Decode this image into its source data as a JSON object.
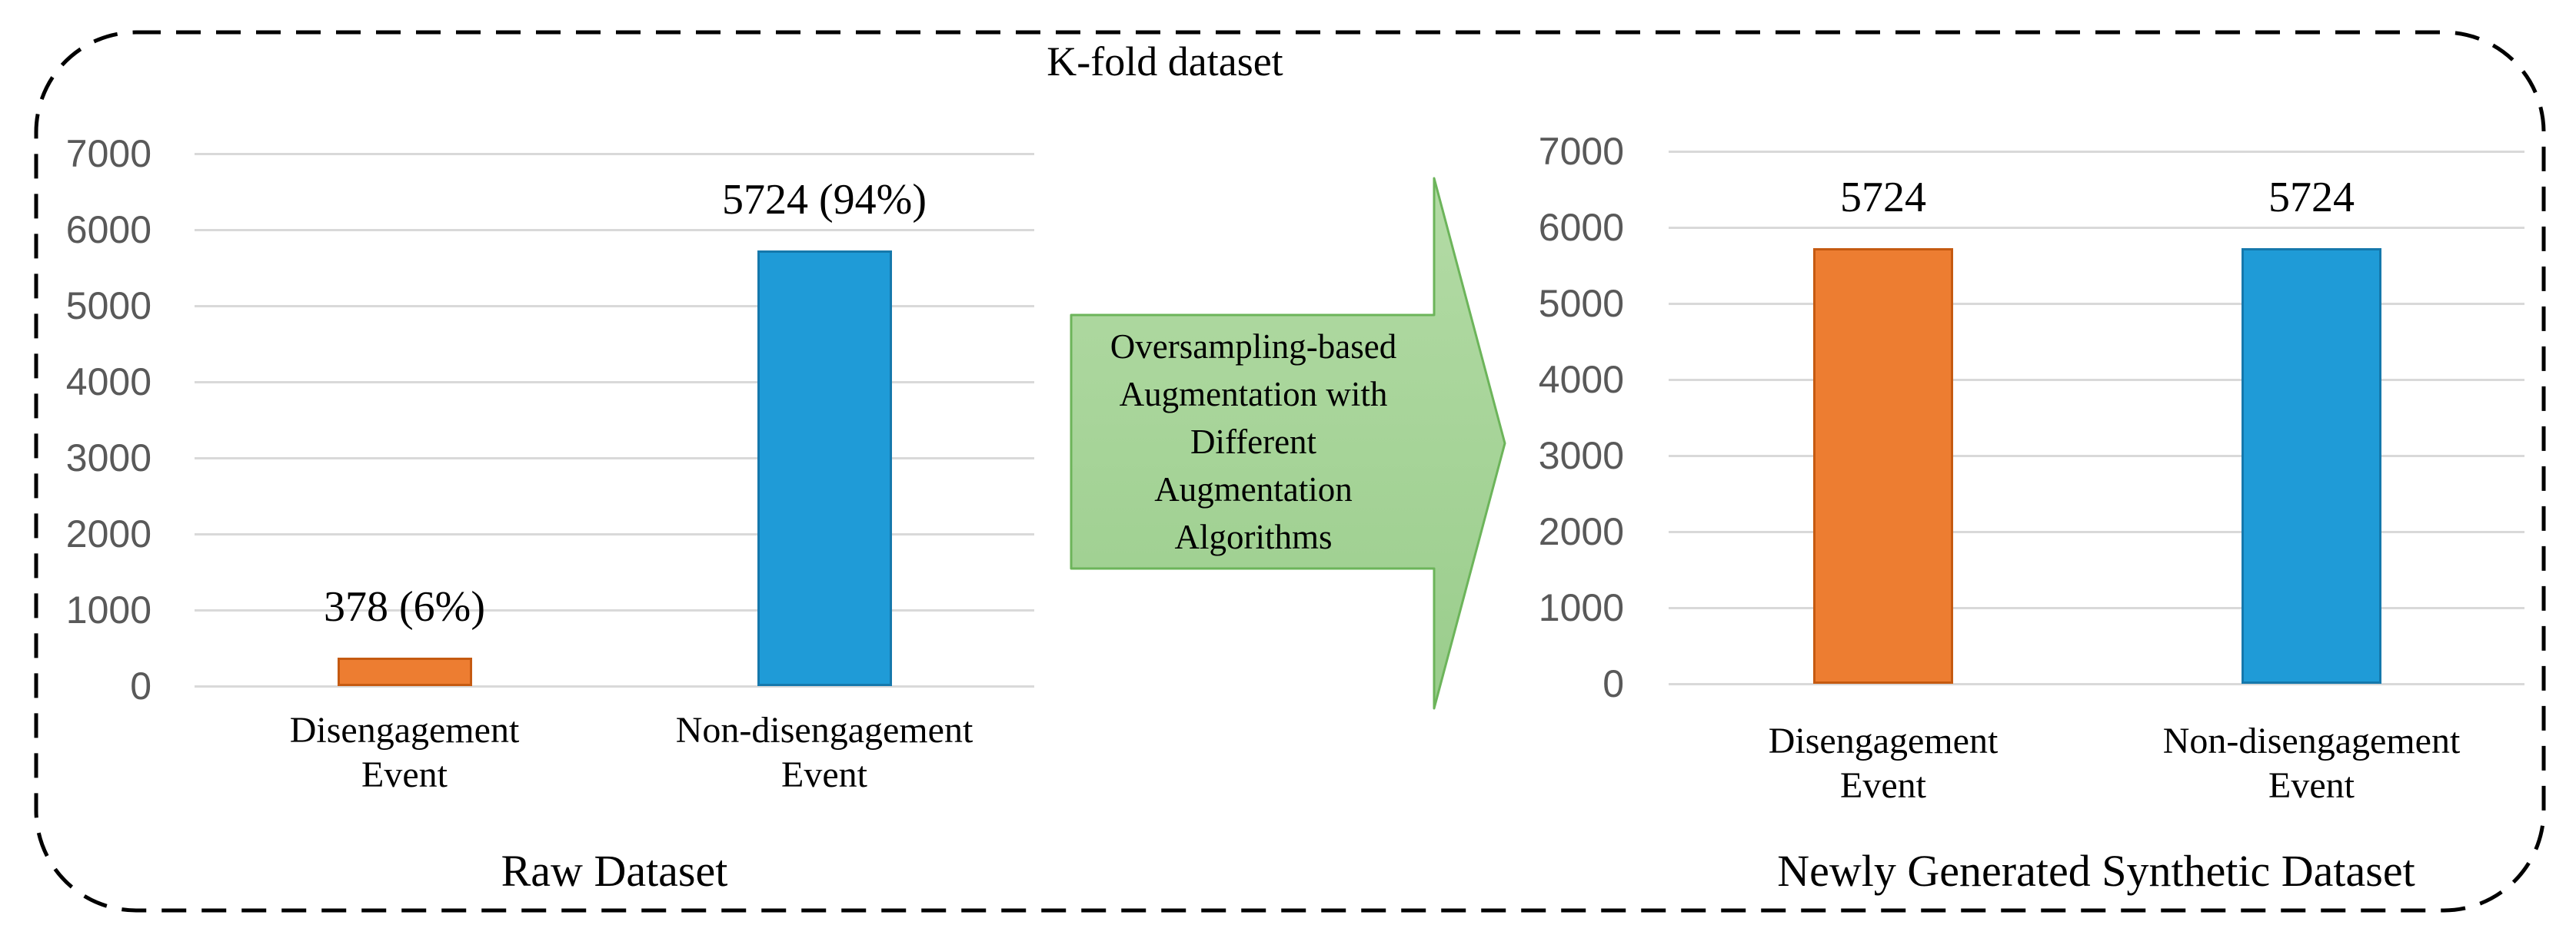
{
  "figure": {
    "title": "K-fold dataset",
    "arrow": {
      "label_lines": [
        "Oversampling-based",
        "Augmentation with",
        "Different",
        "Augmentation",
        "Algorithms"
      ]
    }
  },
  "palette": {
    "orange_fill": "#ED7D31",
    "orange_border": "#C55A11",
    "blue_fill": "#1F9BD7",
    "blue_border": "#1578AC",
    "green_fill_top": "#B3DBA5",
    "green_fill_bottom": "#9ACD8C",
    "green_border": "#6CB45A",
    "gridline": "#D9D9D9",
    "tick_text": "#595959",
    "outer_border": "#000000"
  },
  "chart_data": [
    {
      "type": "bar",
      "title": "Raw Dataset",
      "categories": [
        [
          "Disengagement",
          "Event"
        ],
        [
          "Non-disengagement",
          "Event"
        ]
      ],
      "values": [
        378,
        5724
      ],
      "value_labels": [
        "378 (6%)",
        "5724 (94%)"
      ],
      "bar_colors": [
        "#ED7D31",
        "#1F9BD7"
      ],
      "bar_border_colors": [
        "#C55A11",
        "#1578AC"
      ],
      "ylim": [
        0,
        7000
      ],
      "yticks": [
        0,
        1000,
        2000,
        3000,
        4000,
        5000,
        6000,
        7000
      ],
      "grid": true,
      "legend": "none",
      "xlabel": "",
      "ylabel": ""
    },
    {
      "type": "bar",
      "title": "Newly Generated Synthetic Dataset",
      "categories": [
        [
          "Disengagement",
          "Event"
        ],
        [
          "Non-disengagement",
          "Event"
        ]
      ],
      "values": [
        5724,
        5724
      ],
      "value_labels": [
        "5724",
        "5724"
      ],
      "bar_colors": [
        "#ED7D31",
        "#1F9BD7"
      ],
      "bar_border_colors": [
        "#C55A11",
        "#1578AC"
      ],
      "ylim": [
        0,
        7000
      ],
      "yticks": [
        0,
        1000,
        2000,
        3000,
        4000,
        5000,
        6000,
        7000
      ],
      "grid": true,
      "legend": "none",
      "xlabel": "",
      "ylabel": ""
    }
  ]
}
